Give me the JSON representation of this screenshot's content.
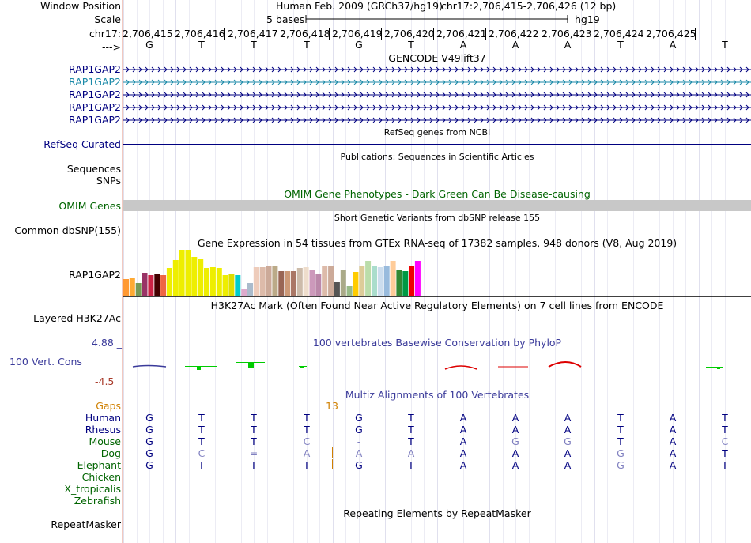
{
  "header": {
    "window_position_label": "Window Position",
    "scale_label": "Scale",
    "chrom_label": "chr17:",
    "arrow_label": "--->",
    "assembly_title": "Human Feb. 2009 (GRCh37/hg19)",
    "region": "chr17:2,706,415-2,706,426 (12 bp)",
    "scale_text": "5 bases",
    "db": "hg19",
    "coords": [
      "2,706,415",
      "2,706,416",
      "2,706,417",
      "2,706,418",
      "2,706,419",
      "2,706,420",
      "2,706,421",
      "2,706,422",
      "2,706,423",
      "2,706,424",
      "2,706,425"
    ],
    "bases": [
      "G",
      "T",
      "T",
      "T",
      "G",
      "T",
      "A",
      "A",
      "A",
      "T",
      "A",
      "T"
    ]
  },
  "tracks": {
    "gencode": {
      "title": "GENCODE V49lift37",
      "rows": [
        {
          "label": "RAP1GAP2",
          "color": "#000080"
        },
        {
          "label": "RAP1GAP2",
          "color": "#1b8aa8"
        },
        {
          "label": "RAP1GAP2",
          "color": "#000080"
        },
        {
          "label": "RAP1GAP2",
          "color": "#000080"
        },
        {
          "label": "RAP1GAP2",
          "color": "#000080"
        }
      ]
    },
    "refseq": {
      "title": "RefSeq genes from NCBI",
      "label": "RefSeq Curated"
    },
    "publications": {
      "title": "Publications: Sequences in Scientific Articles",
      "label1": "Sequences",
      "label2": "SNPs"
    },
    "omim": {
      "title": "OMIM Gene Phenotypes - Dark Green Can Be Disease-causing",
      "label": "OMIM Genes"
    },
    "dbsnp": {
      "title": "Short Genetic Variants from dbSNP release 155",
      "label": "Common dbSNP(155)"
    },
    "gtex": {
      "title": "Gene Expression in 54 tissues from GTEx RNA-seq of 17382 samples, 948 donors (V8, Aug 2019)",
      "label": "RAP1GAP2",
      "bars": [
        {
          "h": 0.36,
          "c": "#ff9933"
        },
        {
          "h": 0.38,
          "c": "#ffaa33"
        },
        {
          "h": 0.28,
          "c": "#779955"
        },
        {
          "h": 0.49,
          "c": "#993366"
        },
        {
          "h": 0.45,
          "c": "#cc2244"
        },
        {
          "h": 0.47,
          "c": "#440000"
        },
        {
          "h": 0.45,
          "c": "#ee6644"
        },
        {
          "h": 0.6,
          "c": "#eeee00"
        },
        {
          "h": 0.77,
          "c": "#eeee00"
        },
        {
          "h": 1.0,
          "c": "#eeee00"
        },
        {
          "h": 1.0,
          "c": "#eeee00"
        },
        {
          "h": 0.85,
          "c": "#eeee00"
        },
        {
          "h": 0.8,
          "c": "#eeee00"
        },
        {
          "h": 0.6,
          "c": "#eeee00"
        },
        {
          "h": 0.62,
          "c": "#eeee00"
        },
        {
          "h": 0.6,
          "c": "#eeee00"
        },
        {
          "h": 0.45,
          "c": "#eeee00"
        },
        {
          "h": 0.47,
          "c": "#dddd00"
        },
        {
          "h": 0.45,
          "c": "#00cccc"
        },
        {
          "h": 0.13,
          "c": "#ddaacc"
        },
        {
          "h": 0.28,
          "c": "#aabbcc"
        },
        {
          "h": 0.62,
          "c": "#eeccbb"
        },
        {
          "h": 0.62,
          "c": "#ddbbaa"
        },
        {
          "h": 0.66,
          "c": "#ccaa99"
        },
        {
          "h": 0.64,
          "c": "#bbaa88"
        },
        {
          "h": 0.53,
          "c": "#996655"
        },
        {
          "h": 0.53,
          "c": "#cc9977"
        },
        {
          "h": 0.53,
          "c": "#aa7766"
        },
        {
          "h": 0.6,
          "c": "#ccbbaa"
        },
        {
          "h": 0.62,
          "c": "#eeddcc"
        },
        {
          "h": 0.55,
          "c": "#cc99bb"
        },
        {
          "h": 0.47,
          "c": "#bb88aa"
        },
        {
          "h": 0.64,
          "c": "#ddbbaa"
        },
        {
          "h": 0.64,
          "c": "#ccaa99"
        },
        {
          "h": 0.3,
          "c": "#555555"
        },
        {
          "h": 0.55,
          "c": "#aaaa88"
        },
        {
          "h": 0.2,
          "c": "#99bb88"
        },
        {
          "h": 0.51,
          "c": "#ffcc00"
        },
        {
          "h": 0.64,
          "c": "#ddcc99"
        },
        {
          "h": 0.75,
          "c": "#bbddaa"
        },
        {
          "h": 0.66,
          "c": "#aaddcc"
        },
        {
          "h": 0.62,
          "c": "#ccddee"
        },
        {
          "h": 0.66,
          "c": "#99bbdd"
        },
        {
          "h": 0.75,
          "c": "#ffcc99"
        },
        {
          "h": 0.55,
          "c": "#338833"
        },
        {
          "h": 0.53,
          "c": "#009944"
        },
        {
          "h": 0.64,
          "c": "#ee0000"
        },
        {
          "h": 0.75,
          "c": "#ff00ff"
        }
      ]
    },
    "h3k27ac": {
      "title": "H3K27Ac Mark (Often Found Near Active Regulatory Elements) on 7 cell lines from ENCODE",
      "label": "Layered H3K27Ac"
    },
    "phylop": {
      "title": "100 vertebrates Basewise Conservation by PhyloP",
      "label": "100 Vert. Cons",
      "max": "4.88 _",
      "min": "-4.5 _"
    },
    "multiz": {
      "title": "Multiz Alignments of 100 Vertebrates",
      "gaps_label": "Gaps",
      "gaps_value": "13",
      "species": [
        {
          "name": "Human",
          "bases": [
            "G",
            "T",
            "T",
            "T",
            "G",
            "T",
            "A",
            "A",
            "A",
            "T",
            "A",
            "T"
          ]
        },
        {
          "name": "Rhesus",
          "bases": [
            "G",
            "T",
            "T",
            "T",
            "G",
            "T",
            "A",
            "A",
            "A",
            "T",
            "A",
            "T"
          ]
        },
        {
          "name": "Mouse",
          "bases": [
            "G",
            "T",
            "T",
            "C",
            "-",
            "T",
            "A",
            "G",
            "G",
            "T",
            "A",
            "C"
          ]
        },
        {
          "name": "Dog",
          "bases": [
            "G",
            "C",
            "=",
            "A",
            "A",
            "A",
            "A",
            "A",
            "A",
            "G",
            "A",
            "T"
          ]
        },
        {
          "name": "Elephant",
          "bases": [
            "G",
            "T",
            "T",
            "T",
            "G",
            "T",
            "A",
            "A",
            "A",
            "G",
            "A",
            "T"
          ]
        },
        {
          "name": "Chicken",
          "bases": []
        },
        {
          "name": "X_tropicalis",
          "bases": []
        },
        {
          "name": "Zebrafish",
          "bases": []
        }
      ]
    },
    "repeatmasker": {
      "title": "Repeating Elements by RepeatMasker",
      "label": "RepeatMasker"
    }
  },
  "colors": {
    "navy": "#000080",
    "gray_base": "#8080c0",
    "green_label": "#006400",
    "gaps_orange": "#d08000",
    "omim_gray": "#c8c8c8"
  }
}
